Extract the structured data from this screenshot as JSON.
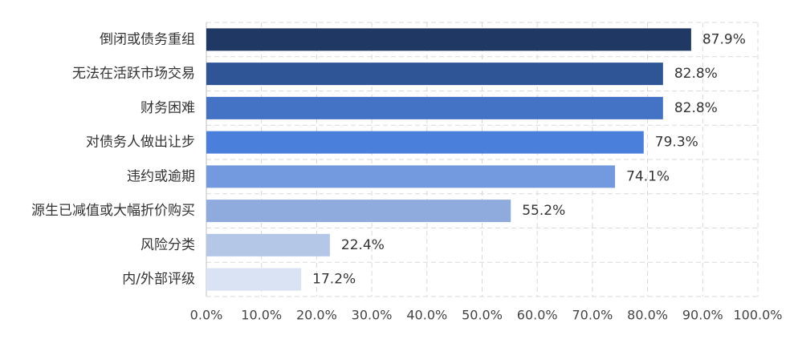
{
  "chart_data": {
    "type": "bar",
    "orientation": "horizontal",
    "categories": [
      "倒闭或债务重组",
      "无法在活跃市场交易",
      "财务困难",
      "对债务人做出让步",
      "违约或逾期",
      "源生已减值或大幅折价购买",
      "风险分类",
      "内/外部评级"
    ],
    "values": [
      87.9,
      82.8,
      82.8,
      79.3,
      74.1,
      55.2,
      22.4,
      17.2
    ],
    "value_labels": [
      "87.9%",
      "82.8%",
      "82.8%",
      "79.3%",
      "74.1%",
      "55.2%",
      "22.4%",
      "17.2%"
    ],
    "bar_colors": [
      "#203864",
      "#2f5597",
      "#4472c4",
      "#4a7fdc",
      "#7399de",
      "#8faadc",
      "#b4c7e7",
      "#dae3f3"
    ],
    "xlim": [
      0,
      100
    ],
    "x_ticks": [
      0,
      10,
      20,
      30,
      40,
      50,
      60,
      70,
      80,
      90,
      100
    ],
    "x_tick_labels": [
      "0.0%",
      "10.0%",
      "20.0%",
      "30.0%",
      "40.0%",
      "50.0%",
      "60.0%",
      "70.0%",
      "80.0%",
      "90.0%",
      "100.0%"
    ],
    "grid": true,
    "legend": "none"
  }
}
